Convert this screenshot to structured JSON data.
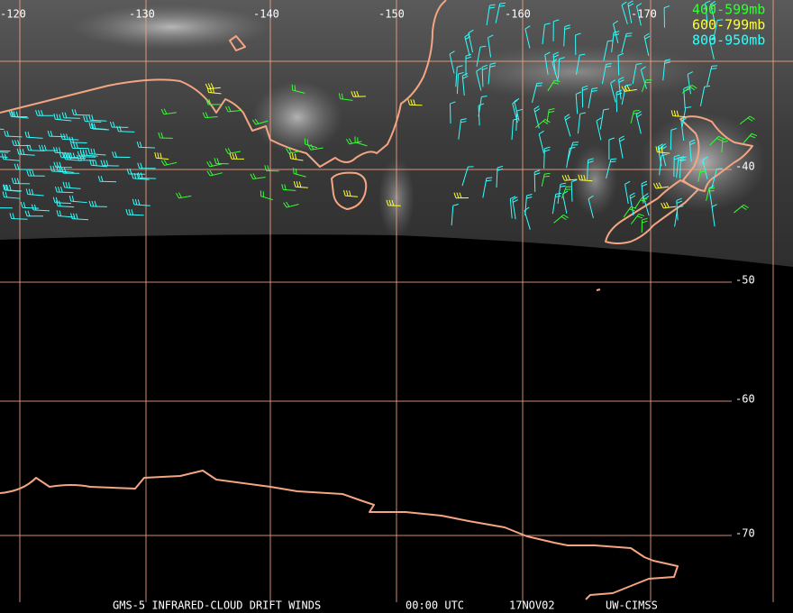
{
  "map": {
    "longitude_labels": [
      "-120",
      "-130",
      "-140",
      "-150",
      "-160",
      "-170"
    ],
    "latitude_labels": [
      "-40",
      "-50",
      "-60",
      "-70"
    ],
    "legend": [
      "400-599mb",
      "600-799mb",
      "800-950mb"
    ],
    "footer": [
      "GMS-5 INFRARED-CLOUD DRIFT WINDS",
      "00:00 UTC",
      "17NOV02",
      "UW-CIMSS"
    ]
  }
}
